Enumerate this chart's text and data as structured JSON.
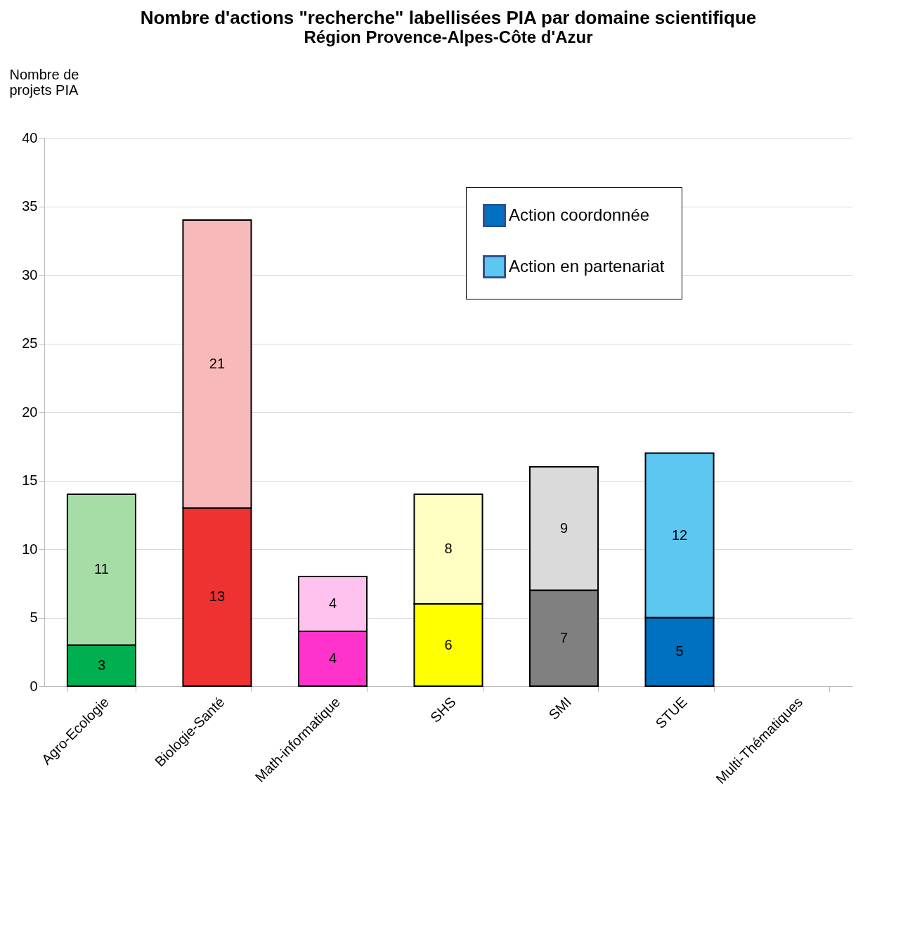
{
  "chart_data": {
    "type": "bar",
    "title": "Nombre d'actions \"recherche\" labellisées PIA par domaine scientifique",
    "subtitle": "Région Provence-Alpes-Côte d'Azur",
    "ylabel": "Nombre de projets PIA",
    "categories": [
      "Agro-Ecologie",
      "Biologie-Santé",
      "Math-informatique",
      "SHS",
      "SMI",
      "STUE",
      "Multi-Thématiques"
    ],
    "stacked": true,
    "data_labels": true,
    "grid": "y",
    "legend": "top right",
    "ylim": [
      0,
      40
    ],
    "yticks": [
      0,
      5,
      10,
      15,
      20,
      25,
      30,
      35,
      40
    ],
    "series": [
      {
        "name": "Action coordonnée",
        "color": "#0070c0",
        "values": [
          3,
          13,
          4,
          6,
          7,
          5,
          null
        ],
        "colors": [
          "#00b050",
          "#ee3131",
          "#ff33cc",
          "#ffff00",
          "#808080",
          "#0070c0",
          null
        ]
      },
      {
        "name": "Action en partenariat",
        "color": "#5cc8f2",
        "values": [
          11,
          21,
          4,
          8,
          9,
          12,
          null
        ],
        "colors": [
          "#a6dca6",
          "#f7b9b9",
          "#ffc2ee",
          "#ffffc4",
          "#dadada",
          "#5cc8f2",
          null
        ]
      }
    ]
  }
}
